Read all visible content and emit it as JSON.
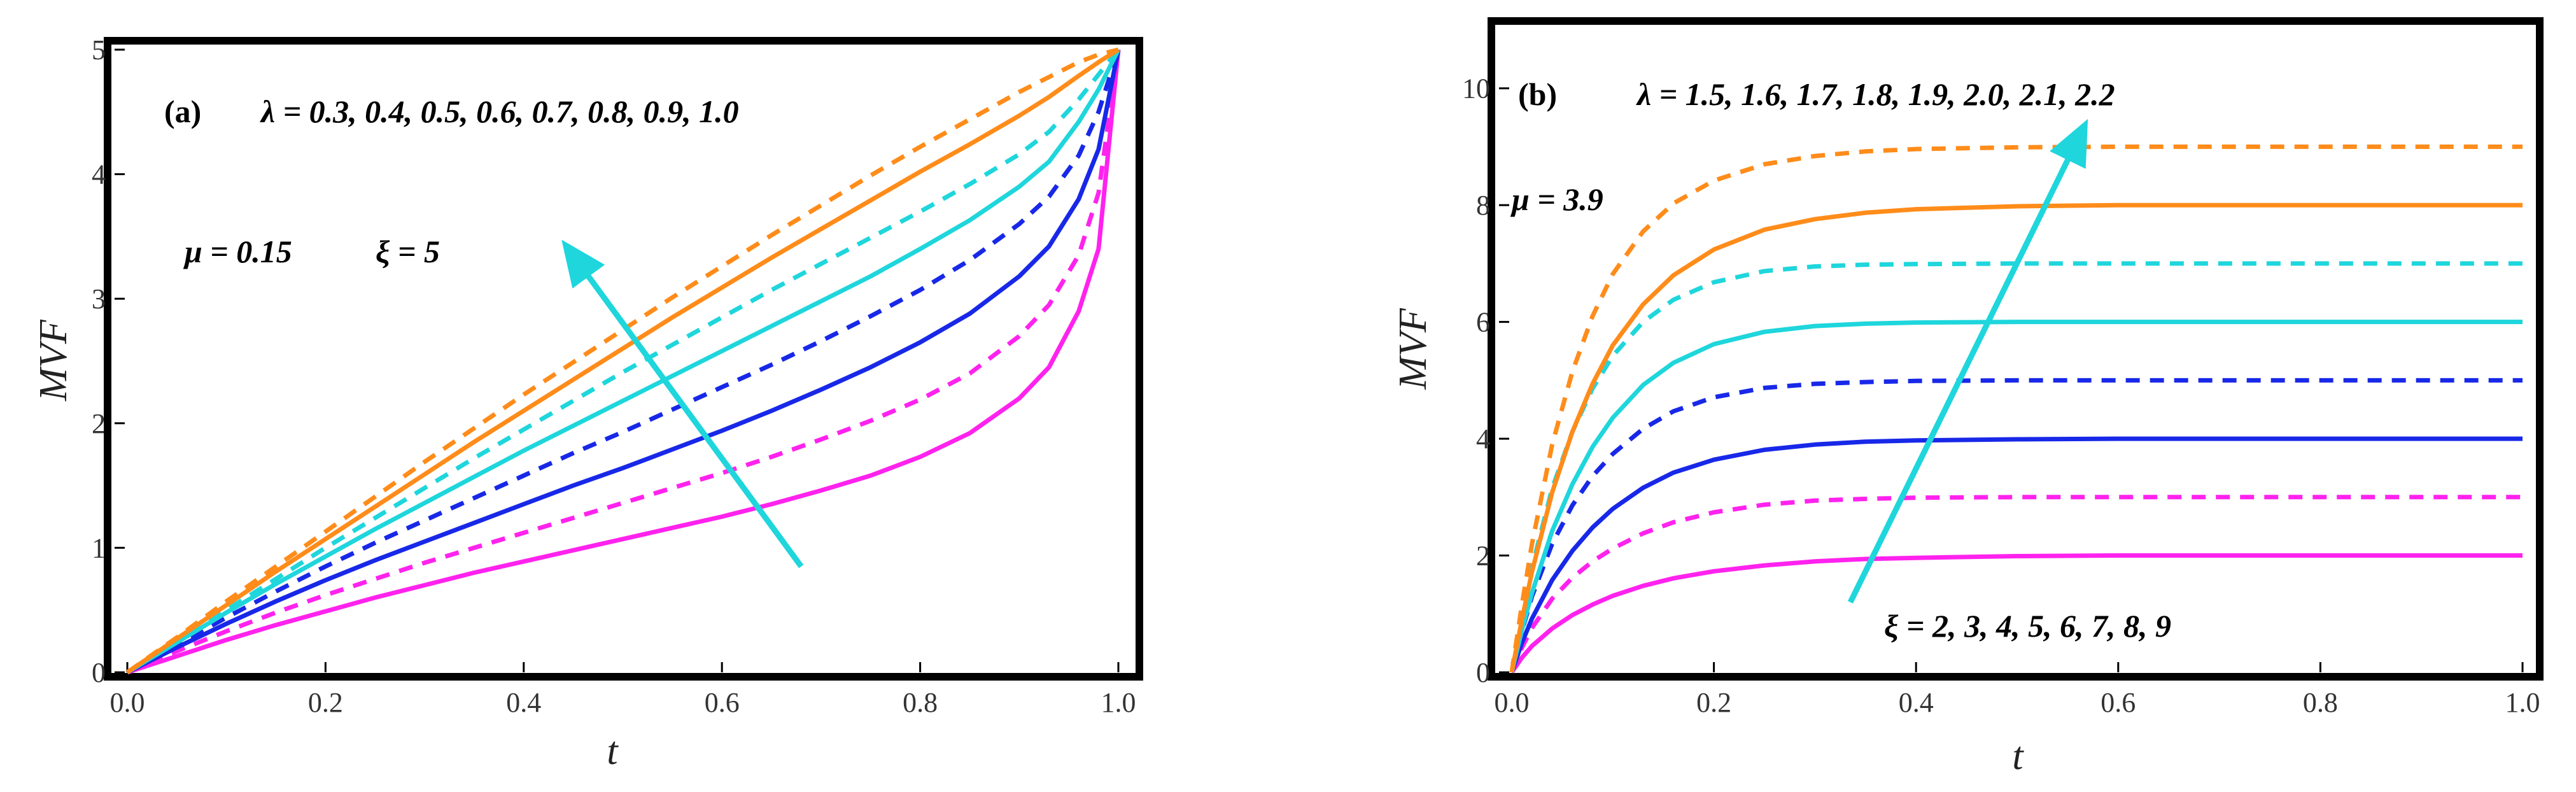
{
  "chart_data": [
    {
      "type": "line",
      "panel_label": "(a)",
      "xlabel": "t",
      "ylabel": "MVF",
      "xlim": [
        0,
        1
      ],
      "ylim": [
        0,
        5
      ],
      "xticks": [
        "0.0",
        "0.2",
        "0.4",
        "0.6",
        "0.8",
        "1.0"
      ],
      "yticks": [
        "0",
        "1",
        "2",
        "3",
        "4",
        "5"
      ],
      "annotations": {
        "lambda_text": "λ = 0.3, 0.4, 0.5, 0.6, 0.7, 0.8, 0.9, 1.0",
        "mu_text": "μ = 0.15",
        "xi_text": "ξ = 5"
      },
      "arrow": {
        "from": [
          0.68,
          0.85
        ],
        "to": [
          0.445,
          3.4
        ],
        "color": "#1ed6dc"
      },
      "x": [
        0,
        0.05,
        0.1,
        0.15,
        0.2,
        0.25,
        0.3,
        0.35,
        0.4,
        0.45,
        0.5,
        0.55,
        0.6,
        0.65,
        0.7,
        0.75,
        0.8,
        0.85,
        0.9,
        0.93,
        0.96,
        0.98,
        1.0
      ],
      "series": [
        {
          "name": "λ = 0.3",
          "color": "#ff22ee",
          "dash": "solid",
          "values": [
            0,
            0.13,
            0.26,
            0.38,
            0.49,
            0.6,
            0.7,
            0.8,
            0.89,
            0.98,
            1.07,
            1.16,
            1.25,
            1.35,
            1.46,
            1.58,
            1.73,
            1.92,
            2.2,
            2.45,
            2.9,
            3.4,
            5.0
          ]
        },
        {
          "name": "λ = 0.4",
          "color": "#ff22ee",
          "dash": "dashed",
          "values": [
            0,
            0.17,
            0.33,
            0.48,
            0.62,
            0.75,
            0.88,
            1.0,
            1.12,
            1.24,
            1.36,
            1.48,
            1.6,
            1.73,
            1.87,
            2.02,
            2.19,
            2.4,
            2.7,
            2.95,
            3.35,
            3.85,
            5.0
          ]
        },
        {
          "name": "λ = 0.5",
          "color": "#1828e8",
          "dash": "solid",
          "values": [
            0,
            0.2,
            0.39,
            0.57,
            0.74,
            0.9,
            1.05,
            1.2,
            1.35,
            1.5,
            1.64,
            1.79,
            1.94,
            2.1,
            2.27,
            2.45,
            2.65,
            2.88,
            3.18,
            3.42,
            3.8,
            4.2,
            5.0
          ]
        },
        {
          "name": "λ = 0.6",
          "color": "#1828e8",
          "dash": "dashed",
          "values": [
            0,
            0.22,
            0.44,
            0.65,
            0.85,
            1.04,
            1.22,
            1.4,
            1.58,
            1.76,
            1.93,
            2.11,
            2.29,
            2.47,
            2.66,
            2.86,
            3.07,
            3.31,
            3.6,
            3.82,
            4.15,
            4.5,
            5.0
          ]
        },
        {
          "name": "λ = 0.7",
          "color": "#1ed6dc",
          "dash": "solid",
          "values": [
            0,
            0.24,
            0.48,
            0.71,
            0.93,
            1.15,
            1.36,
            1.57,
            1.78,
            1.98,
            2.18,
            2.38,
            2.58,
            2.78,
            2.98,
            3.18,
            3.4,
            3.63,
            3.9,
            4.1,
            4.42,
            4.68,
            5.0
          ]
        },
        {
          "name": "λ = 0.8",
          "color": "#1ed6dc",
          "dash": "dashed",
          "values": [
            0,
            0.25,
            0.5,
            0.75,
            1.0,
            1.24,
            1.48,
            1.72,
            1.95,
            2.18,
            2.41,
            2.63,
            2.85,
            3.07,
            3.28,
            3.49,
            3.7,
            3.92,
            4.16,
            4.34,
            4.6,
            4.8,
            5.0
          ]
        },
        {
          "name": "λ = 0.9",
          "color": "#ff8c1a",
          "dash": "solid",
          "values": [
            0,
            0.27,
            0.54,
            0.81,
            1.07,
            1.33,
            1.59,
            1.85,
            2.1,
            2.35,
            2.6,
            2.85,
            3.09,
            3.33,
            3.56,
            3.79,
            4.02,
            4.24,
            4.47,
            4.62,
            4.79,
            4.9,
            5.0
          ]
        },
        {
          "name": "λ = 1.0",
          "color": "#ff8c1a",
          "dash": "dashed",
          "values": [
            0,
            0.28,
            0.57,
            0.85,
            1.13,
            1.41,
            1.69,
            1.96,
            2.23,
            2.49,
            2.75,
            3.01,
            3.26,
            3.51,
            3.75,
            3.99,
            4.22,
            4.44,
            4.66,
            4.78,
            4.9,
            4.96,
            5.0
          ]
        }
      ]
    },
    {
      "type": "line",
      "panel_label": "(b)",
      "xlabel": "t",
      "ylabel": "MVF",
      "xlim": [
        0,
        1
      ],
      "ylim": [
        0,
        11
      ],
      "xticks": [
        "0.0",
        "0.2",
        "0.4",
        "0.6",
        "0.8",
        "1.0"
      ],
      "yticks": [
        "0",
        "2",
        "4",
        "6",
        "8",
        "10"
      ],
      "annotations": {
        "lambda_text": "λ = 1.5, 1.6, 1.7, 1.8, 1.9, 2.0, 2.1, 2.2",
        "mu_text": "μ = 3.9",
        "xi_text": "ξ = 2, 3, 4, 5, 6, 7, 8, 9"
      },
      "arrow": {
        "from": [
          0.335,
          1.2
        ],
        "to": [
          0.565,
          9.3
        ],
        "color": "#1ed6dc"
      },
      "x": [
        0,
        0.01,
        0.02,
        0.04,
        0.06,
        0.08,
        0.1,
        0.13,
        0.16,
        0.2,
        0.25,
        0.3,
        0.35,
        0.4,
        0.5,
        0.6,
        0.7,
        0.8,
        0.9,
        1.0
      ],
      "series": [
        {
          "name": "ξ = 2",
          "color": "#ff22ee",
          "dash": "solid",
          "values": [
            0,
            0.25,
            0.45,
            0.75,
            0.98,
            1.16,
            1.31,
            1.48,
            1.61,
            1.73,
            1.83,
            1.9,
            1.94,
            1.96,
            1.99,
            2.0,
            2.0,
            2.0,
            2.0,
            2.0
          ]
        },
        {
          "name": "ξ = 3",
          "color": "#ff22ee",
          "dash": "dashed",
          "values": [
            0,
            0.42,
            0.76,
            1.26,
            1.62,
            1.9,
            2.12,
            2.38,
            2.57,
            2.74,
            2.87,
            2.94,
            2.97,
            2.99,
            3.0,
            3.0,
            3.0,
            3.0,
            3.0,
            3.0
          ]
        },
        {
          "name": "ξ = 4",
          "color": "#1828e8",
          "dash": "solid",
          "values": [
            0,
            0.5,
            0.92,
            1.58,
            2.08,
            2.48,
            2.8,
            3.16,
            3.42,
            3.64,
            3.81,
            3.9,
            3.95,
            3.97,
            3.99,
            4.0,
            4.0,
            4.0,
            4.0,
            4.0
          ]
        },
        {
          "name": "ξ = 5",
          "color": "#1828e8",
          "dash": "dashed",
          "values": [
            0,
            0.7,
            1.3,
            2.2,
            2.86,
            3.36,
            3.74,
            4.17,
            4.47,
            4.71,
            4.87,
            4.94,
            4.97,
            4.99,
            5.0,
            5.0,
            5.0,
            5.0,
            5.0,
            5.0
          ]
        },
        {
          "name": "ξ = 6",
          "color": "#1ed6dc",
          "dash": "solid",
          "values": [
            0,
            0.72,
            1.36,
            2.42,
            3.22,
            3.86,
            4.36,
            4.92,
            5.3,
            5.62,
            5.83,
            5.93,
            5.97,
            5.99,
            6.0,
            6.0,
            6.0,
            6.0,
            6.0,
            6.0
          ]
        },
        {
          "name": "ξ = 7",
          "color": "#1ed6dc",
          "dash": "dashed",
          "values": [
            0,
            0.95,
            1.8,
            3.15,
            4.12,
            4.86,
            5.42,
            6.0,
            6.38,
            6.68,
            6.87,
            6.95,
            6.98,
            6.99,
            7.0,
            7.0,
            7.0,
            7.0,
            7.0,
            7.0
          ]
        },
        {
          "name": "ξ = 8",
          "color": "#ff8c1a",
          "dash": "solid",
          "values": [
            0,
            0.9,
            1.72,
            3.08,
            4.12,
            4.94,
            5.6,
            6.3,
            6.8,
            7.24,
            7.58,
            7.76,
            7.87,
            7.93,
            7.98,
            8.0,
            8.0,
            8.0,
            8.0,
            8.0
          ]
        },
        {
          "name": "ξ = 9",
          "color": "#ff8c1a",
          "dash": "dashed",
          "values": [
            0,
            1.15,
            2.2,
            3.9,
            5.15,
            6.1,
            6.82,
            7.55,
            8.03,
            8.42,
            8.7,
            8.84,
            8.92,
            8.96,
            8.99,
            9.0,
            9.0,
            9.0,
            9.0,
            9.0
          ]
        }
      ]
    }
  ]
}
